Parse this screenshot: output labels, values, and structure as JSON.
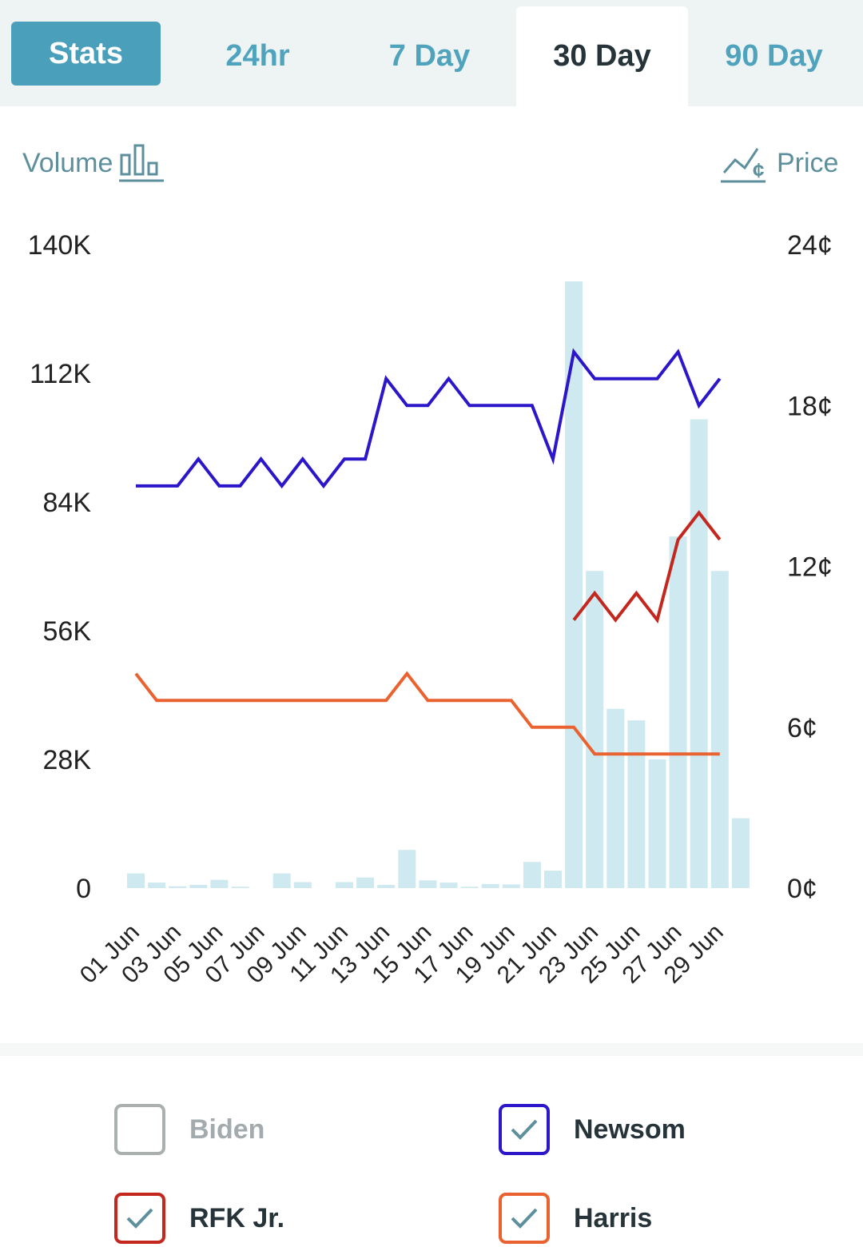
{
  "tabs": [
    {
      "label": "Stats",
      "active": false,
      "style": "button"
    },
    {
      "label": "24hr",
      "active": false
    },
    {
      "label": "7 Day",
      "active": false
    },
    {
      "label": "30 Day",
      "active": true
    },
    {
      "label": "90 Day",
      "active": false
    }
  ],
  "toggles": {
    "volume_label": "Volume",
    "price_label": "Price",
    "volume_icon": "bar-chart-icon",
    "price_icon": "line-chart-cent-icon"
  },
  "colors": {
    "accent": "#4aa0bb",
    "newsom": "#2b17c9",
    "rfk": "#c3271e",
    "harris": "#ea6230",
    "biden": "#aab0ae",
    "volume": "#cfe9f0",
    "check": "#5e8f9c"
  },
  "chart_data": {
    "type": "bar+line",
    "x_ticks": [
      "01 Jun",
      "03 Jun",
      "05 Jun",
      "07 Jun",
      "09 Jun",
      "11 Jun",
      "13 Jun",
      "15 Jun",
      "17 Jun",
      "19 Jun",
      "21 Jun",
      "23 Jun",
      "25 Jun",
      "27 Jun",
      "29 Jun"
    ],
    "left_axis": {
      "label": "Volume",
      "ticks": [
        "140K",
        "112K",
        "84K",
        "56K",
        "28K",
        "0"
      ],
      "range": [
        0,
        140000
      ]
    },
    "right_axis": {
      "label": "Price",
      "ticks": [
        "24¢",
        "18¢",
        "12¢",
        "6¢",
        "0¢"
      ],
      "range": [
        0,
        24
      ]
    },
    "days": [
      "01 Jun",
      "02 Jun",
      "03 Jun",
      "04 Jun",
      "05 Jun",
      "06 Jun",
      "07 Jun",
      "08 Jun",
      "09 Jun",
      "10 Jun",
      "11 Jun",
      "12 Jun",
      "13 Jun",
      "14 Jun",
      "15 Jun",
      "16 Jun",
      "17 Jun",
      "18 Jun",
      "19 Jun",
      "20 Jun",
      "21 Jun",
      "22 Jun",
      "23 Jun",
      "24 Jun",
      "25 Jun",
      "26 Jun",
      "27 Jun",
      "28 Jun",
      "29 Jun",
      "30 Jun"
    ],
    "volume": [
      3200,
      1200,
      400,
      700,
      1800,
      300,
      0,
      3200,
      1300,
      0,
      1300,
      2300,
      700,
      8300,
      1700,
      1200,
      300,
      900,
      800,
      5700,
      3800,
      132000,
      69000,
      39000,
      36500,
      28000,
      76500,
      102000,
      69000,
      15200
    ],
    "series": [
      {
        "name": "Newsom",
        "color": "#2b17c9",
        "values": [
          15,
          15,
          15,
          16,
          15,
          15,
          16,
          15,
          16,
          15,
          16,
          16,
          19,
          18,
          18,
          19,
          18,
          18,
          18,
          18,
          16,
          20,
          19,
          19,
          19,
          19,
          20,
          18,
          19,
          null
        ]
      },
      {
        "name": "RFK Jr.",
        "color": "#c3271e",
        "values": [
          null,
          null,
          null,
          null,
          null,
          null,
          null,
          null,
          null,
          null,
          null,
          null,
          null,
          null,
          null,
          null,
          null,
          null,
          null,
          null,
          null,
          10,
          11,
          10,
          11,
          10,
          13,
          14,
          13,
          null
        ]
      },
      {
        "name": "Harris",
        "color": "#ea6230",
        "values": [
          8,
          7,
          7,
          7,
          7,
          7,
          7,
          7,
          7,
          7,
          7,
          7,
          7,
          8,
          7,
          7,
          7,
          7,
          7,
          6,
          6,
          6,
          5,
          5,
          5,
          5,
          5,
          5,
          5,
          null
        ]
      }
    ]
  },
  "legend": [
    {
      "name": "Biden",
      "checked": false,
      "color": "#aab0ae"
    },
    {
      "name": "Newsom",
      "checked": true,
      "color": "#2b17c9"
    },
    {
      "name": "RFK Jr.",
      "checked": true,
      "color": "#c3271e"
    },
    {
      "name": "Harris",
      "checked": true,
      "color": "#ea6230"
    }
  ]
}
